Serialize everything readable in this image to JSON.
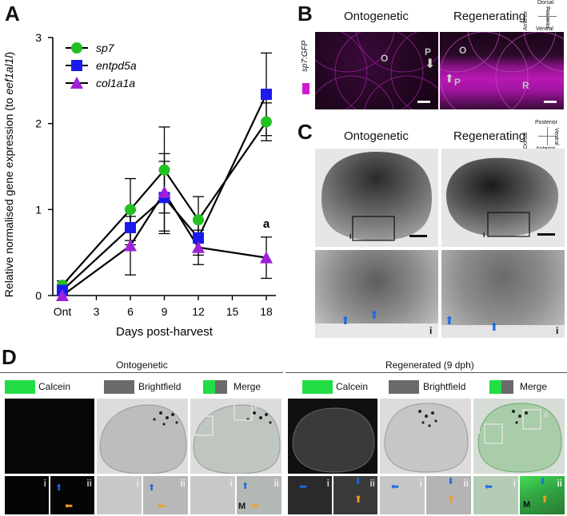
{
  "panels": {
    "a": "A",
    "b": "B",
    "c": "C",
    "d": "D"
  },
  "chart_data": {
    "type": "line",
    "ylabel": "Relative normalised gene expression (to eef1al1l)",
    "ylabel_prefix": "Relative normalised gene expression (to ",
    "ylabel_gene": "eef1al1l",
    "ylabel_suffix": ")",
    "xlabel": "Days post-harvest",
    "x_ticks": [
      "Ont",
      "3",
      "6",
      "9",
      "12",
      "15",
      "18"
    ],
    "y_ticks": [
      "0",
      "1",
      "2",
      "3"
    ],
    "ylim": [
      0,
      3
    ],
    "x": [
      "Ont",
      "6",
      "9",
      "12",
      "18"
    ],
    "series": [
      {
        "name": "sp7",
        "color": "#22c022",
        "marker": "circle",
        "values": [
          0.12,
          1.0,
          1.46,
          0.88,
          2.02
        ],
        "err": [
          0.05,
          0.36,
          0.5,
          0.27,
          0.22
        ]
      },
      {
        "name": "entpd5a",
        "color": "#1a1aee",
        "marker": "square",
        "values": [
          0.06,
          0.79,
          1.14,
          0.67,
          2.34
        ],
        "err": [
          0.05,
          0.2,
          0.42,
          0.2,
          0.48
        ]
      },
      {
        "name": "col1a1a",
        "color": "#a020d8",
        "marker": "triangle",
        "values": [
          0.0,
          0.58,
          1.2,
          0.56,
          0.44
        ],
        "err": [
          0.03,
          0.34,
          0.45,
          0.2,
          0.24
        ]
      }
    ],
    "annotation": "a",
    "legend": "top-left"
  },
  "panel_b": {
    "ontogenetic": "Ontogenetic",
    "regenerating": "Regenerating",
    "side_label": "sp7:GFP",
    "marker_o": "O",
    "marker_p": "P",
    "marker_r": "R",
    "compass": {
      "top": "Dorsal",
      "bottom": "Ventral",
      "left": "Anterior",
      "right": "Posterior"
    },
    "magenta": "#d21ad2"
  },
  "panel_c": {
    "ontogenetic": "Ontogenetic",
    "regenerating": "Regenerating",
    "inset_label": "i",
    "compass": {
      "top": "Posterior",
      "bottom": "Anterior",
      "left": "Dorsal",
      "right": "Ventral"
    }
  },
  "panel_d": {
    "ontogenetic_title": "Ontogenetic",
    "regenerated_title": "Regenerated (9 dph)",
    "calcein": "Calcein",
    "brightfield": "Brightfield",
    "merge": "Merge",
    "roman_i": "i",
    "roman_ii": "ii",
    "marker_m": "M",
    "green": "#22dd44",
    "gray": "#6a6a6a"
  }
}
